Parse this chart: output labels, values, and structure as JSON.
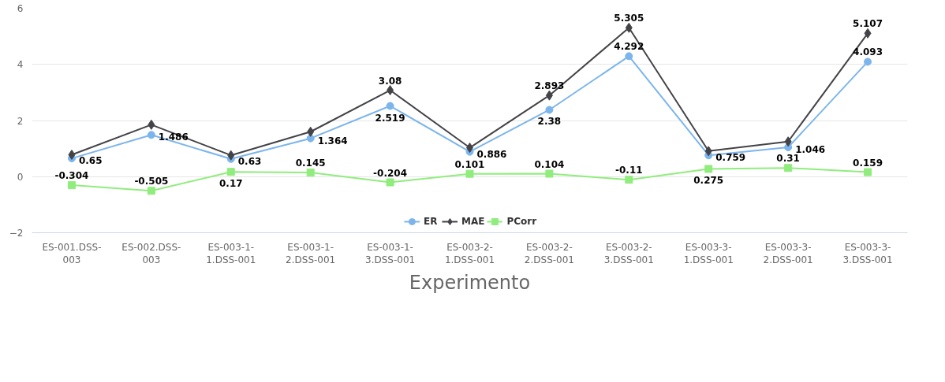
{
  "chart_data": {
    "type": "line",
    "xlabel": "Experimento",
    "categories": [
      "ES-001.DSS-003",
      "ES-002.DSS-003",
      "ES-003-1-1.DSS-001",
      "ES-003-1-2.DSS-001",
      "ES-003-1-3.DSS-001",
      "ES-003-2-1.DSS-001",
      "ES-003-2-2.DSS-001",
      "ES-003-2-3.DSS-001",
      "ES-003-3-1.DSS-001",
      "ES-003-3-2.DSS-001",
      "ES-003-3-3.DSS-001"
    ],
    "series": [
      {
        "name": "ER",
        "color": "#7cb5ec",
        "marker": "circle",
        "values": [
          0.65,
          1.486,
          0.63,
          1.364,
          2.519,
          0.886,
          2.38,
          4.292,
          0.759,
          1.046,
          4.093
        ],
        "value_labels": [
          "0.65",
          "1.486",
          "0.63",
          "1.364",
          "2.519",
          "0.886",
          "2.38",
          "4.292",
          "0.759",
          "1.046",
          "4.093"
        ]
      },
      {
        "name": "MAE",
        "color": "#434348",
        "marker": "diamond",
        "values": [
          0.78,
          1.85,
          0.76,
          1.6,
          3.08,
          1.03,
          2.893,
          5.305,
          0.91,
          1.25,
          5.107
        ],
        "value_labels": [
          null,
          null,
          null,
          null,
          "3.08",
          null,
          "2.893",
          "5.305",
          null,
          null,
          "5.107"
        ]
      },
      {
        "name": "PCorr",
        "color": "#90ed7d",
        "marker": "square",
        "values": [
          -0.304,
          -0.505,
          0.17,
          0.145,
          -0.204,
          0.101,
          0.104,
          -0.11,
          0.275,
          0.31,
          0.159
        ],
        "value_labels": [
          "-0.304",
          "-0.505",
          "0.17",
          "0.145",
          "-0.204",
          "0.101",
          "0.104",
          "-0.11",
          "0.275",
          "0.31",
          "0.159"
        ]
      }
    ],
    "ylim": [
      -2,
      6
    ],
    "yticks": [
      -2,
      0,
      2,
      4,
      6
    ],
    "grid": "y",
    "legend": "bottom"
  }
}
